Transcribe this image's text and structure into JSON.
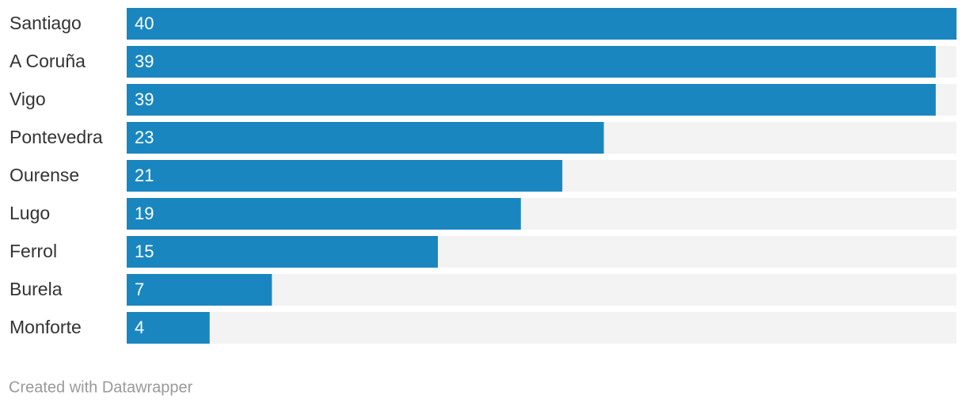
{
  "chart_data": {
    "type": "bar",
    "orientation": "horizontal",
    "categories": [
      "Santiago",
      "A Coruña",
      "Vigo",
      "Pontevedra",
      "Ourense",
      "Lugo",
      "Ferrol",
      "Burela",
      "Monforte"
    ],
    "values": [
      40,
      39,
      39,
      23,
      21,
      19,
      15,
      7,
      4
    ],
    "color": "#1a86c0",
    "track_color": "#f3f3f3",
    "xlim": [
      0,
      40
    ],
    "credit": "Created with Datawrapper"
  }
}
